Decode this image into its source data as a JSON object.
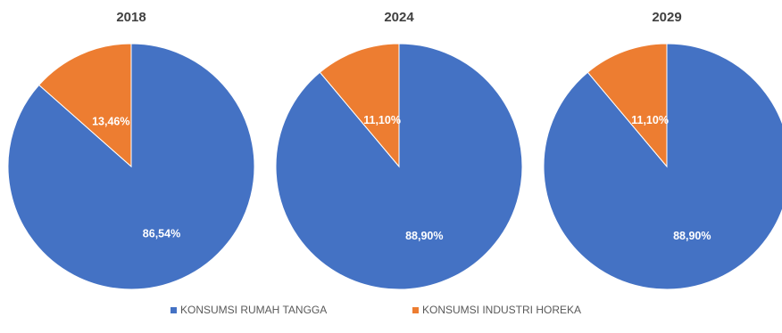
{
  "legend": {
    "placement": "bottom",
    "items": [
      {
        "label": "KONSUMSI RUMAH TANGGA",
        "color": "#4472C4"
      },
      {
        "label": "KONSUMSI INDUSTRI HOREKA",
        "color": "#ED7D31"
      }
    ]
  },
  "chart_data": [
    {
      "type": "pie",
      "title": "2018",
      "slices": [
        {
          "label": "KONSUMSI RUMAH TANGGA",
          "value": 86.54,
          "display": "86,54%",
          "color": "#4472C4"
        },
        {
          "label": "KONSUMSI INDUSTRI HOREKA",
          "value": 13.46,
          "display": "13,46%",
          "color": "#ED7D31"
        }
      ]
    },
    {
      "type": "pie",
      "title": "2024",
      "slices": [
        {
          "label": "KONSUMSI RUMAH TANGGA",
          "value": 88.9,
          "display": "88,90%",
          "color": "#4472C4"
        },
        {
          "label": "KONSUMSI INDUSTRI HOREKA",
          "value": 11.1,
          "display": "11,10%",
          "color": "#ED7D31"
        }
      ]
    },
    {
      "type": "pie",
      "title": "2029",
      "slices": [
        {
          "label": "KONSUMSI RUMAH TANGGA",
          "value": 88.9,
          "display": "88,90%",
          "color": "#4472C4"
        },
        {
          "label": "KONSUMSI INDUSTRI HOREKA",
          "value": 11.1,
          "display": "11,10%",
          "color": "#ED7D31"
        }
      ]
    }
  ]
}
